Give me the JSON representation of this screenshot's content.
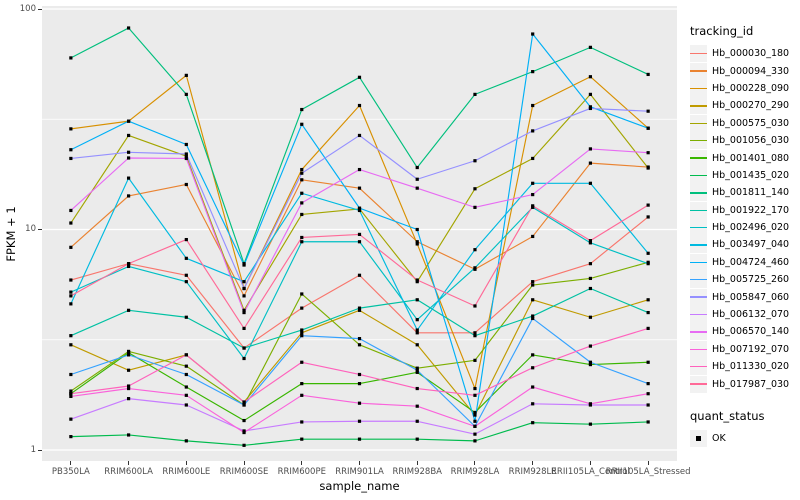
{
  "figure": {
    "x_title": "sample_name",
    "y_title": "FPKM + 1",
    "legend": {
      "tracking_title": "tracking_id",
      "quant_title": "quant_status",
      "quant_items": [
        {
          "label": "OK",
          "marker": "black-square"
        }
      ]
    },
    "colors": {
      "panel_background": "#EBEBEB",
      "grid_major": "#FFFFFF",
      "grid_minor": "#FFFFFF",
      "axis_text": "#4D4D4D",
      "tick_mark": "#333333",
      "legend_key_background": "#F2F2F2",
      "point_marker": "#000000"
    }
  },
  "chart_data": {
    "type": "line",
    "title": "",
    "xlabel": "sample_name",
    "ylabel": "FPKM + 1",
    "y_scale": "log10",
    "ylim": [
      1,
      100
    ],
    "y_ticks": [
      1,
      10,
      100
    ],
    "y_minor_ticks": [
      3.162,
      31.62
    ],
    "grid": true,
    "legend_position": "right",
    "point_marker": "solid-black-square (quant_status OK)",
    "categories": [
      "PB350LA",
      "RRIM600LA",
      "RRIM600LE",
      "RRIM600SE",
      "RRIM600PE",
      "RRIM901LA",
      "RRIM928BA",
      "RRIM928LA",
      "RRIM928LE",
      "RRII105LA_Control",
      "RRII105LA_Stressed"
    ],
    "series": [
      {
        "name": "Hb_000030_180",
        "color": "#F8766D",
        "values": [
          5.9,
          7.0,
          6.2,
          2.9,
          4.4,
          6.2,
          3.4,
          3.4,
          5.8,
          7.0,
          11.4
        ]
      },
      {
        "name": "Hb_000094_330",
        "color": "#EA8331",
        "values": [
          8.3,
          14.2,
          16.0,
          5.0,
          16.8,
          15.4,
          8.8,
          6.6,
          9.3,
          20.0,
          19.2
        ]
      },
      {
        "name": "Hb_000228_090",
        "color": "#D89000",
        "values": [
          28.6,
          31.0,
          50.0,
          5.4,
          18.7,
          36.5,
          8.6,
          1.9,
          36.5,
          49.3,
          28.8
        ]
      },
      {
        "name": "Hb_000270_290",
        "color": "#C09B00",
        "values": [
          3.0,
          2.3,
          2.7,
          1.65,
          3.4,
          4.3,
          3.0,
          1.44,
          4.8,
          4.0,
          4.8
        ]
      },
      {
        "name": "Hb_000575_030",
        "color": "#A3A500",
        "values": [
          10.7,
          26.7,
          21.5,
          4.3,
          11.7,
          12.4,
          5.8,
          15.3,
          21.0,
          41.0,
          19.0
        ]
      },
      {
        "name": "Hb_001056_030",
        "color": "#7CAE00",
        "values": [
          1.85,
          2.8,
          2.4,
          1.6,
          5.1,
          3.0,
          2.35,
          2.55,
          5.6,
          6.0,
          7.1
        ]
      },
      {
        "name": "Hb_001401_080",
        "color": "#39B600",
        "values": [
          1.8,
          2.76,
          1.93,
          1.36,
          2.0,
          2.0,
          2.25,
          1.48,
          2.7,
          2.44,
          2.5
        ]
      },
      {
        "name": "Hb_001435_020",
        "color": "#00BB4E",
        "values": [
          1.15,
          1.17,
          1.1,
          1.05,
          1.12,
          1.12,
          1.12,
          1.1,
          1.33,
          1.31,
          1.34
        ]
      },
      {
        "name": "Hb_001811_140",
        "color": "#00BF7D",
        "values": [
          60,
          82,
          41,
          7.0,
          35,
          49,
          19.1,
          41,
          52,
          67,
          50.5
        ]
      },
      {
        "name": "Hb_001922_170",
        "color": "#00C1A3",
        "values": [
          3.3,
          4.3,
          4.0,
          2.9,
          3.5,
          4.4,
          4.8,
          3.3,
          4.05,
          5.4,
          4.2
        ]
      },
      {
        "name": "Hb_002496_020",
        "color": "#00BFC4",
        "values": [
          5.2,
          6.8,
          5.8,
          2.6,
          8.8,
          8.8,
          3.9,
          6.7,
          12.6,
          8.7,
          7.0
        ]
      },
      {
        "name": "Hb_003497_040",
        "color": "#00BAE0",
        "values": [
          4.6,
          17.1,
          7.4,
          5.8,
          14.6,
          12.2,
          3.5,
          8.1,
          16.2,
          16.2,
          7.8
        ]
      },
      {
        "name": "Hb_004724_460",
        "color": "#00B0F6",
        "values": [
          23,
          31,
          24.3,
          6.9,
          30,
          12.5,
          10,
          1.35,
          77,
          36,
          28.8
        ]
      },
      {
        "name": "Hb_005725_260",
        "color": "#35A2FF",
        "values": [
          2.2,
          2.7,
          2.2,
          1.6,
          3.3,
          3.2,
          2.3,
          1.28,
          3.95,
          2.5,
          2.0
        ]
      },
      {
        "name": "Hb_005847_060",
        "color": "#9590FF",
        "values": [
          21,
          22.4,
          22,
          5.4,
          18,
          26.7,
          16.9,
          20.5,
          28,
          35.4,
          34.4
        ]
      },
      {
        "name": "Hb_006132_070",
        "color": "#C77CFF",
        "values": [
          1.38,
          1.71,
          1.6,
          1.22,
          1.34,
          1.35,
          1.35,
          1.18,
          1.62,
          1.6,
          1.6
        ]
      },
      {
        "name": "Hb_006570_140",
        "color": "#E76BF3",
        "values": [
          12.2,
          21.1,
          21,
          4.2,
          13.2,
          18.7,
          15.4,
          12.6,
          14.4,
          23.2,
          22.3
        ]
      },
      {
        "name": "Hb_007192_070",
        "color": "#FA62DB",
        "values": [
          1.75,
          1.9,
          1.77,
          1.2,
          1.77,
          1.63,
          1.58,
          1.28,
          1.93,
          1.62,
          1.8
        ]
      },
      {
        "name": "Hb_011330_020",
        "color": "#FF62BC",
        "values": [
          1.8,
          1.95,
          2.7,
          1.65,
          2.5,
          2.2,
          1.9,
          1.77,
          2.36,
          2.96,
          3.56
        ]
      },
      {
        "name": "Hb_017987_030",
        "color": "#FF6A98",
        "values": [
          5.0,
          7.0,
          9.0,
          3.56,
          9.2,
          9.5,
          5.9,
          4.5,
          12.8,
          8.9,
          12.9
        ]
      }
    ]
  }
}
